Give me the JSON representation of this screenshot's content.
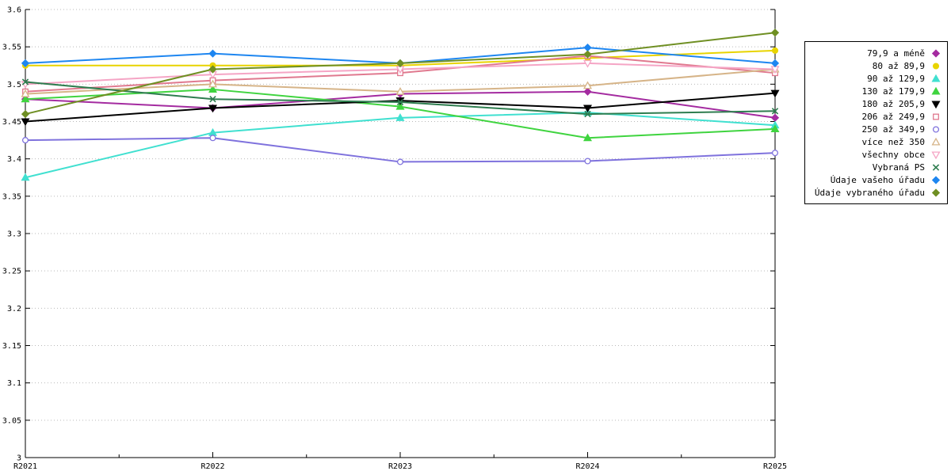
{
  "page": {
    "background": "#ffffff",
    "axis_color": "#000000",
    "grid_color": "#b9b9b9"
  },
  "chart_data": {
    "type": "line",
    "title": "",
    "xlabel": "",
    "ylabel": "",
    "x": [
      "R2021",
      "R2022",
      "R2023",
      "R2024",
      "R2025"
    ],
    "ylim": [
      3.0,
      3.6
    ],
    "grid": "horizontal-dotted",
    "legend_position": "right-outside",
    "yticks": [
      {
        "value": 3,
        "label": "3"
      },
      {
        "value": 3.05,
        "label": "3.05"
      },
      {
        "value": 3.1,
        "label": "3.1"
      },
      {
        "value": 3.15,
        "label": "3.15"
      },
      {
        "value": 3.2,
        "label": "3.2"
      },
      {
        "value": 3.25,
        "label": "3.25"
      },
      {
        "value": 3.3,
        "label": "3.3"
      },
      {
        "value": 3.35,
        "label": "3.35"
      },
      {
        "value": 3.4,
        "label": "3.4"
      },
      {
        "value": 3.45,
        "label": "3.45"
      },
      {
        "value": 3.5,
        "label": "3.5"
      },
      {
        "value": 3.55,
        "label": "3.55"
      },
      {
        "value": 3.6,
        "label": "3.6"
      }
    ],
    "series": [
      {
        "name": "79,9 a méně",
        "color": "#a42ba0",
        "marker": "diamond",
        "open": false,
        "values": [
          3.48,
          3.468,
          3.487,
          3.49,
          3.455
        ]
      },
      {
        "name": "80 až 89,9",
        "color": "#e8d400",
        "marker": "circle",
        "open": false,
        "values": [
          3.525,
          3.525,
          3.525,
          3.535,
          3.545
        ]
      },
      {
        "name": "90 až 129,9",
        "color": "#40e0d0",
        "marker": "triangle-up",
        "open": false,
        "values": [
          3.375,
          3.435,
          3.455,
          3.462,
          3.445
        ]
      },
      {
        "name": "130 až 179,9",
        "color": "#3fd43f",
        "marker": "triangle-up",
        "open": false,
        "values": [
          3.48,
          3.493,
          3.47,
          3.428,
          3.44
        ]
      },
      {
        "name": "180 až 205,9",
        "color": "#000000",
        "marker": "triangle-down",
        "open": false,
        "values": [
          3.45,
          3.468,
          3.478,
          3.468,
          3.488
        ]
      },
      {
        "name": "206 až 249,9",
        "color": "#e0798f",
        "marker": "square",
        "open": true,
        "values": [
          3.49,
          3.505,
          3.515,
          3.538,
          3.515
        ]
      },
      {
        "name": "250 až 349,9",
        "color": "#7f72dd",
        "marker": "circle",
        "open": true,
        "values": [
          3.425,
          3.428,
          3.396,
          3.397,
          3.408
        ]
      },
      {
        "name": "více než 350",
        "color": "#d6b488",
        "marker": "triangle-up",
        "open": true,
        "values": [
          3.487,
          3.5,
          3.49,
          3.498,
          3.52
        ]
      },
      {
        "name": "všechny obce",
        "color": "#f5a5c5",
        "marker": "triangle-down",
        "open": true,
        "values": [
          3.5,
          3.513,
          3.52,
          3.528,
          3.52
        ]
      },
      {
        "name": "Vybraná PS",
        "color": "#2e7d4f",
        "marker": "x",
        "open": false,
        "values": [
          3.503,
          3.48,
          3.476,
          3.46,
          3.464
        ]
      },
      {
        "name": "Údaje vašeho úřadu",
        "color": "#1e86f0",
        "marker": "diamond",
        "open": false,
        "values": [
          3.528,
          3.541,
          3.528,
          3.549,
          3.528
        ]
      },
      {
        "name": "Údaje vybraného úřadu",
        "color": "#6f8f23",
        "marker": "diamond",
        "open": false,
        "values": [
          3.46,
          3.52,
          3.528,
          3.54,
          3.569
        ]
      }
    ]
  }
}
